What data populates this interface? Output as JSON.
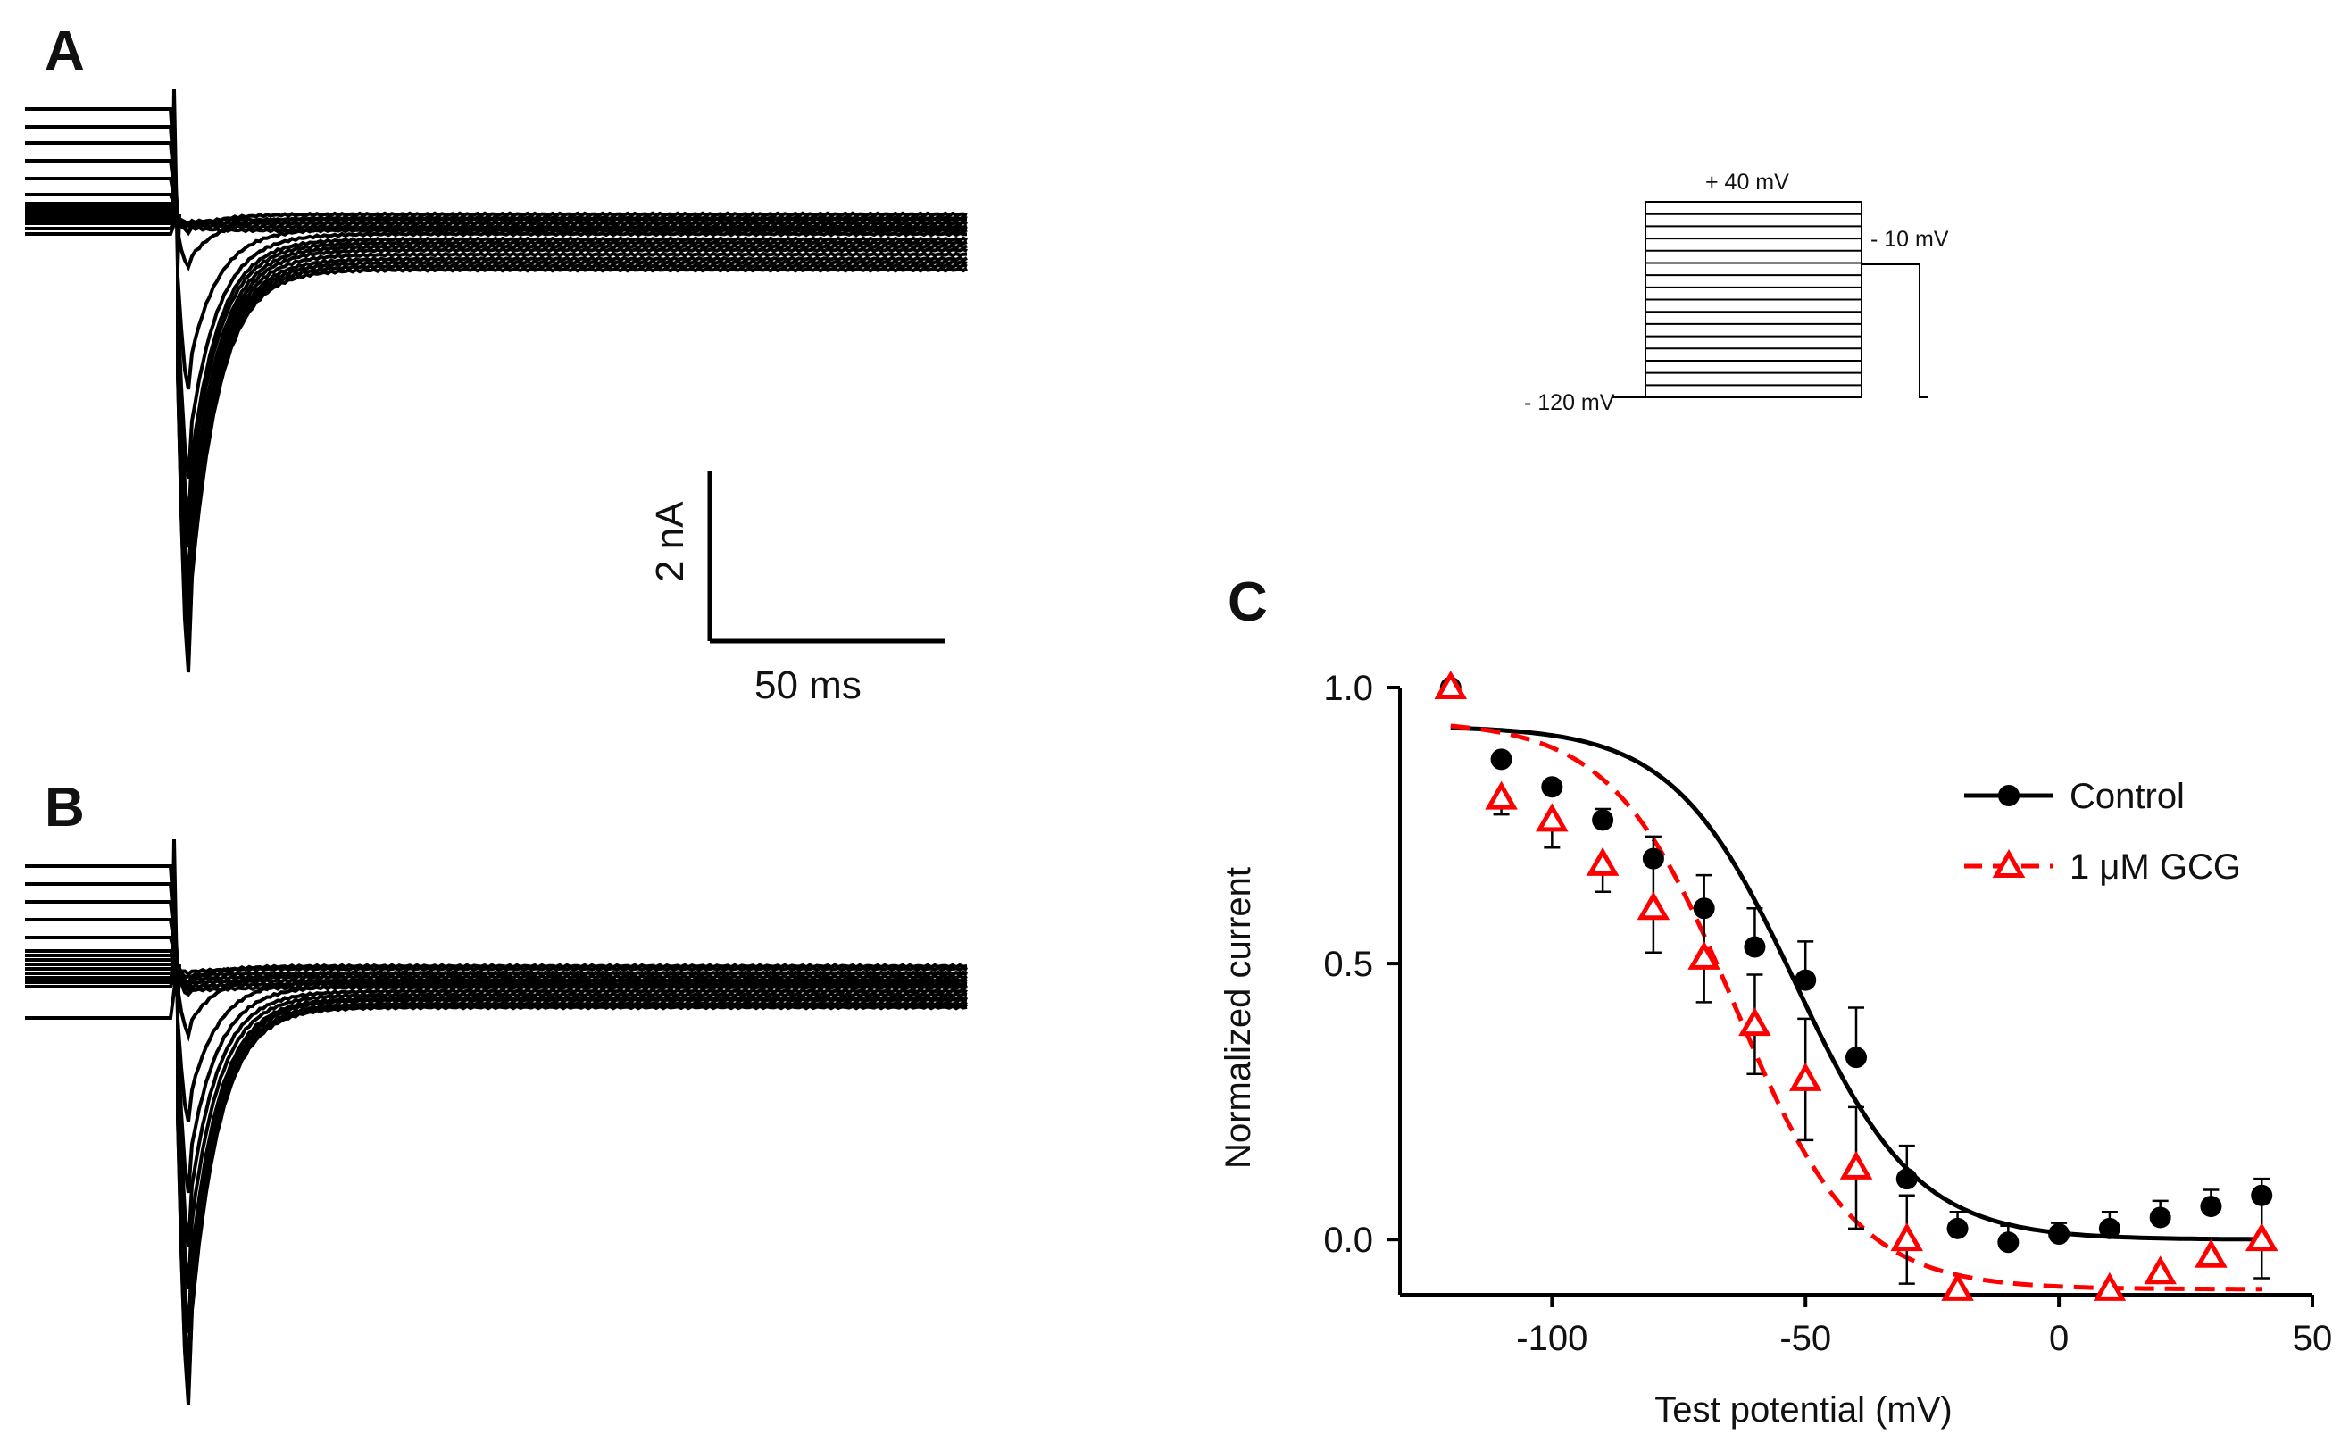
{
  "panels": {
    "a_label": "A",
    "b_label": "B",
    "c_label": "C"
  },
  "scale_bar": {
    "current_label": "2 nA",
    "time_label": "50 ms"
  },
  "protocol": {
    "top_label": "+ 40 mV",
    "hold_label": "- 120 mV",
    "test_label": "- 10 mV"
  },
  "chart_data": {
    "type": "scatter",
    "title": "",
    "xlabel": "Test potential (mV)",
    "ylabel": "Normalized current",
    "xlim": [
      -130,
      50
    ],
    "ylim": [
      -0.1,
      1.0
    ],
    "xticks": [
      -100,
      -50,
      0,
      50
    ],
    "xtick_labels": [
      "-100",
      "-50",
      "0",
      "50"
    ],
    "yticks": [
      0.0,
      0.5,
      1.0
    ],
    "ytick_labels": [
      "0.0",
      "0.5",
      "1.0"
    ],
    "legend_position": "top-right",
    "x": [
      -120,
      -110,
      -100,
      -90,
      -80,
      -70,
      -60,
      -50,
      -40,
      -30,
      -20,
      -10,
      0,
      10,
      20,
      30,
      40
    ],
    "series": [
      {
        "name": "Control",
        "color": "#000000",
        "marker": "circle",
        "line": "solid",
        "values": [
          1.0,
          0.87,
          0.82,
          0.76,
          0.69,
          0.6,
          0.53,
          0.47,
          0.33,
          0.11,
          0.02,
          -0.005,
          0.01,
          0.02,
          0.04,
          0.06,
          0.08
        ],
        "errors": [
          0.0,
          0.0,
          0.0,
          0.02,
          0.04,
          0.06,
          0.07,
          0.07,
          0.09,
          0.06,
          0.03,
          0.03,
          0.02,
          0.03,
          0.03,
          0.03,
          0.03
        ],
        "fit": {
          "top": 0.93,
          "bottom": 0.0,
          "v_half": -52,
          "slope": 12
        }
      },
      {
        "name": "1 μM GCG",
        "color": "#ff0000",
        "marker": "triangle-open",
        "line": "dashed",
        "values": [
          1.0,
          0.8,
          0.76,
          0.68,
          0.6,
          0.51,
          0.39,
          0.29,
          0.13,
          0.0,
          -0.09,
          null,
          null,
          -0.09,
          -0.06,
          -0.03,
          0.0
        ],
        "errors": [
          0.0,
          0.03,
          0.05,
          0.05,
          0.08,
          0.08,
          0.09,
          0.11,
          0.11,
          0.08,
          0.0,
          null,
          null,
          0.0,
          0.0,
          0.0,
          0.07
        ],
        "fit": {
          "top": 0.94,
          "bottom": -0.09,
          "v_half": -64,
          "slope": 12
        }
      }
    ]
  },
  "colors": {
    "ink": "#000000",
    "gcg": "#ff0000"
  }
}
